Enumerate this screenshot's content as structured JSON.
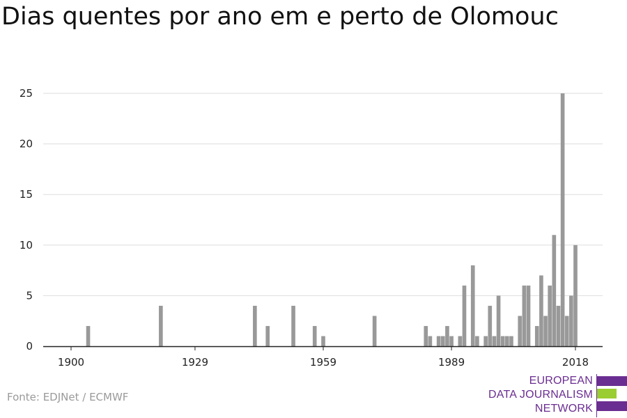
{
  "title": "Dias quentes por ano em e perto de Olomouc",
  "source": "Fonte: EDJNet / ECMWF",
  "logo": {
    "lines": [
      "EUROPEAN",
      "DATA JOURNALISM",
      "NETWORK"
    ],
    "text_color": "#6a2d91",
    "accent_color": "#9acd32"
  },
  "chart_data": {
    "type": "bar",
    "title": "Dias quentes por ano em e perto de Olomouc",
    "xlabel": "",
    "ylabel": "",
    "xlim": [
      1900,
      2018
    ],
    "ylim": [
      0,
      25
    ],
    "xticks": [
      1900,
      1929,
      1959,
      1989,
      2018
    ],
    "yticks": [
      0,
      5,
      10,
      15,
      20,
      25
    ],
    "grid": true,
    "bar_color": "#999999",
    "points": [
      {
        "x": 1904,
        "y": 2
      },
      {
        "x": 1921,
        "y": 4
      },
      {
        "x": 1943,
        "y": 4
      },
      {
        "x": 1946,
        "y": 2
      },
      {
        "x": 1952,
        "y": 4
      },
      {
        "x": 1957,
        "y": 2
      },
      {
        "x": 1959,
        "y": 1
      },
      {
        "x": 1971,
        "y": 3
      },
      {
        "x": 1983,
        "y": 2
      },
      {
        "x": 1984,
        "y": 1
      },
      {
        "x": 1986,
        "y": 1
      },
      {
        "x": 1987,
        "y": 1
      },
      {
        "x": 1988,
        "y": 2
      },
      {
        "x": 1989,
        "y": 1
      },
      {
        "x": 1991,
        "y": 1
      },
      {
        "x": 1992,
        "y": 6
      },
      {
        "x": 1994,
        "y": 8
      },
      {
        "x": 1995,
        "y": 1
      },
      {
        "x": 1997,
        "y": 1
      },
      {
        "x": 1998,
        "y": 4
      },
      {
        "x": 1999,
        "y": 1
      },
      {
        "x": 2000,
        "y": 5
      },
      {
        "x": 2001,
        "y": 1
      },
      {
        "x": 2002,
        "y": 1
      },
      {
        "x": 2003,
        "y": 1
      },
      {
        "x": 2005,
        "y": 3
      },
      {
        "x": 2006,
        "y": 6
      },
      {
        "x": 2007,
        "y": 6
      },
      {
        "x": 2009,
        "y": 2
      },
      {
        "x": 2010,
        "y": 7
      },
      {
        "x": 2011,
        "y": 3
      },
      {
        "x": 2012,
        "y": 6
      },
      {
        "x": 2013,
        "y": 11
      },
      {
        "x": 2014,
        "y": 4
      },
      {
        "x": 2015,
        "y": 25
      },
      {
        "x": 2016,
        "y": 3
      },
      {
        "x": 2017,
        "y": 5
      },
      {
        "x": 2018,
        "y": 10
      }
    ]
  }
}
